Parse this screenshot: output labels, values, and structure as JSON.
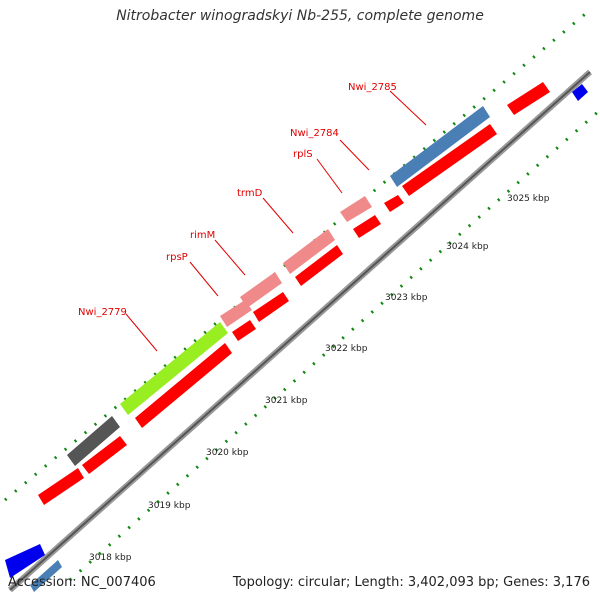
{
  "title": "Nitrobacter winogradskyi Nb-255, complete genome",
  "footer": {
    "accession_label": "Accession:",
    "accession": "NC_007406",
    "summary": "Topology: circular; Length: 3,402,093 bp; Genes: 3,176"
  },
  "colors": {
    "forward_gene": "#ff0000",
    "highlight_gene": "#f08a8a",
    "selected_gene": "#99ee22",
    "other_gene_gray": "#555555",
    "steelblue_gene": "#4a7fb5",
    "blue_gene": "#0000ee",
    "backbone": "#888888",
    "tick_dots": "#118811",
    "label_text": "#e00000"
  },
  "gene_labels": [
    {
      "id": "nwi2785",
      "text": "Nwi_2785"
    },
    {
      "id": "nwi2784",
      "text": "Nwi_2784"
    },
    {
      "id": "rpls",
      "text": "rplS"
    },
    {
      "id": "trmd",
      "text": "trmD"
    },
    {
      "id": "rimm",
      "text": "rimM"
    },
    {
      "id": "rpsp",
      "text": "rpsP"
    },
    {
      "id": "nwi2779",
      "text": "Nwi_2779"
    }
  ],
  "tick_labels": [
    "3018 kbp",
    "3019 kbp",
    "3020 kbp",
    "3021 kbp",
    "3022 kbp",
    "3023 kbp",
    "3024 kbp",
    "3025 kbp"
  ]
}
